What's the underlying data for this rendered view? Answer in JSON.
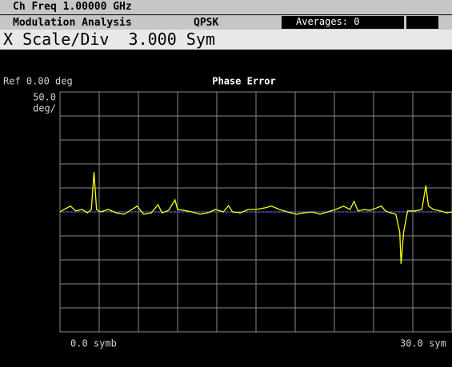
{
  "header": {
    "center_freq": "Ch Freq 1.00000 GHz",
    "mode": "Modulation Analysis",
    "format": "QPSK",
    "averages": "Averages: 0"
  },
  "active_function": "X Scale/Div  3.000 Sym",
  "display": {
    "reference": "Ref 0.00 deg",
    "scale_value": "50.0",
    "scale_unit": "deg/",
    "x_start": "0.0 symb",
    "x_stop": "30.0 sym"
  },
  "chart_data": {
    "type": "line",
    "title": "Phase Error",
    "color": "#ffff00",
    "xlim": [
      0,
      30
    ],
    "ylim": [
      -250,
      250
    ],
    "x": [
      0,
      0.3,
      0.8,
      1.2,
      1.7,
      2.1,
      2.4,
      2.6,
      2.8,
      3.1,
      3.7,
      4.3,
      4.9,
      5.5,
      5.9,
      6.4,
      7.0,
      7.5,
      7.8,
      8.3,
      8.8,
      9.0,
      9.5,
      10.1,
      10.7,
      11.3,
      11.9,
      12.5,
      12.9,
      13.2,
      13.8,
      14.4,
      15.0,
      15.6,
      16.2,
      16.8,
      17.4,
      18.1,
      18.7,
      19.3,
      19.9,
      20.5,
      21.1,
      21.7,
      22.2,
      22.5,
      22.8,
      23.3,
      23.7,
      24.2,
      24.6,
      24.9,
      25.3,
      25.7,
      26.0,
      26.1,
      26.3,
      26.6,
      27.2,
      27.7,
      28.0,
      28.2,
      28.6,
      29.1,
      29.6,
      30.0
    ],
    "values": [
      0,
      5,
      12,
      2,
      5,
      -2,
      5,
      83,
      5,
      0,
      5,
      -2,
      -5,
      5,
      12,
      -5,
      -2,
      15,
      -2,
      3,
      25,
      5,
      3,
      0,
      -5,
      -2,
      5,
      0,
      13,
      0,
      -2,
      5,
      5,
      8,
      12,
      5,
      0,
      -5,
      -2,
      0,
      -5,
      0,
      5,
      12,
      5,
      22,
      2,
      5,
      3,
      8,
      12,
      2,
      -2,
      -5,
      -42,
      -108,
      -42,
      2,
      2,
      5,
      55,
      12,
      5,
      2,
      -2,
      0
    ]
  }
}
